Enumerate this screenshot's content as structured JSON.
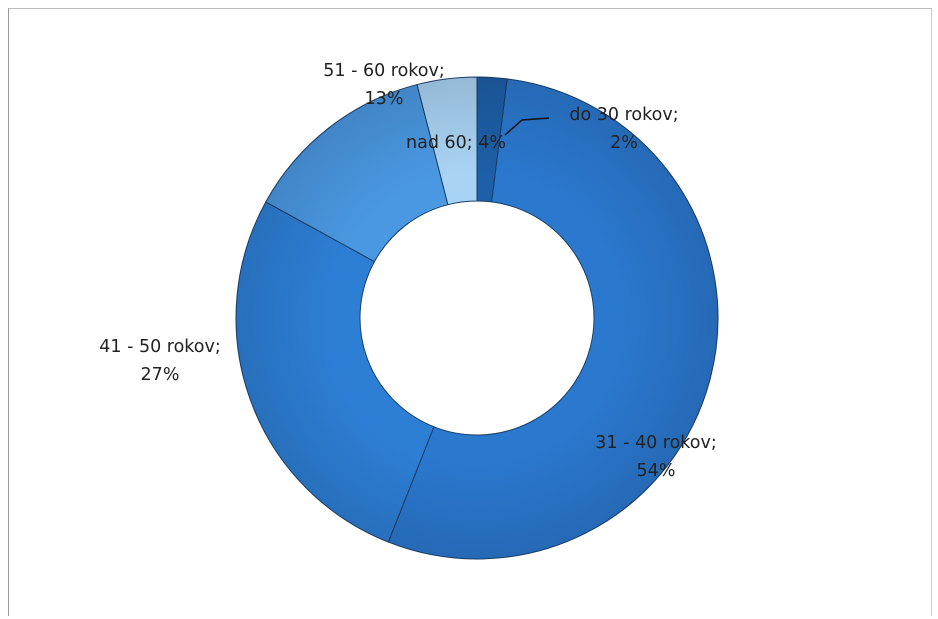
{
  "chart_data": {
    "type": "pie",
    "variant": "donut",
    "slices": [
      {
        "label_line1": "do 30 rokov;",
        "label_line2": "2%",
        "value": 2,
        "color": "#1d5fa8"
      },
      {
        "label_line1": "31 - 40 rokov;",
        "label_line2": "54%",
        "value": 54,
        "color": "#2b78cf"
      },
      {
        "label_line1": "41 - 50 rokov;",
        "label_line2": "27%",
        "value": 27,
        "color": "#2d7fd6"
      },
      {
        "label_line1": "51 - 60 rokov;",
        "label_line2": "13%",
        "value": 13,
        "color": "#4a98e2"
      },
      {
        "label_line1": "nad 60; 4%",
        "label_line2": "",
        "value": 4,
        "color": "#a9d3f4"
      }
    ]
  }
}
